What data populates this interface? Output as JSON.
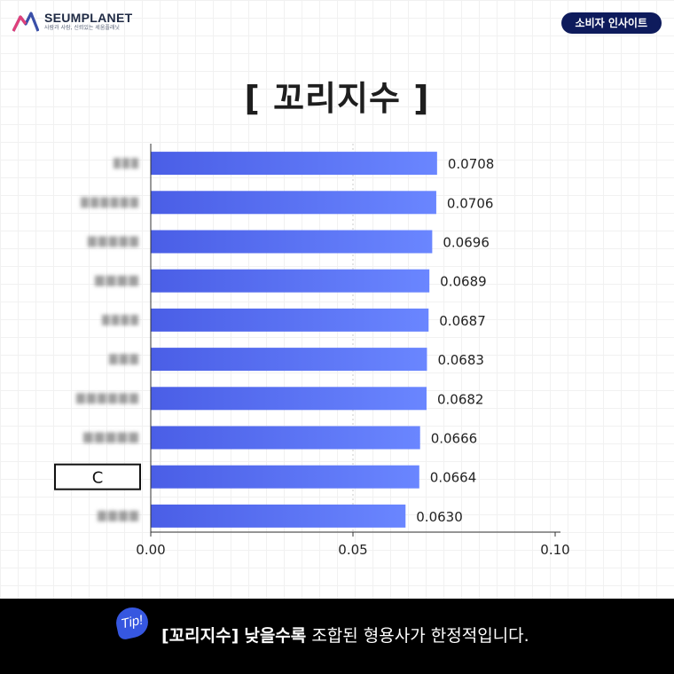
{
  "header": {
    "logo_name": "SEUMPLANET",
    "logo_tagline": "사람과 사람, 신뢰있는 세움플래닛",
    "badge": "소비자 인사이트"
  },
  "title": "[ 꼬리지수 ]",
  "chart_data": {
    "type": "bar",
    "orientation": "horizontal",
    "categories": [
      "(blurred)",
      "(blurred)",
      "(blurred)",
      "(blurred)",
      "(blurred)",
      "(blurred)",
      "(blurred)",
      "(blurred)",
      "C",
      "(blurred)"
    ],
    "values": [
      0.0708,
      0.0706,
      0.0696,
      0.0689,
      0.0687,
      0.0683,
      0.0682,
      0.0666,
      0.0664,
      0.063
    ],
    "value_labels": [
      "0.0708",
      "0.0706",
      "0.0696",
      "0.0689",
      "0.0687",
      "0.0683",
      "0.0682",
      "0.0666",
      "0.0664",
      "0.0630"
    ],
    "xlim": [
      0,
      0.1
    ],
    "xticks": [
      "0.00",
      "0.05",
      "0.10"
    ],
    "highlight_category": "C",
    "gridlines": "dashed vertical",
    "bar_color_start": "#4a5ee6",
    "bar_color_end": "#6a86ff"
  },
  "footer": {
    "tip_label": "Tip!",
    "bracket_term": "[꼬리지수]",
    "emphasis": "낮을수록",
    "rest": "조합된 형용사가 한정적입니다."
  }
}
